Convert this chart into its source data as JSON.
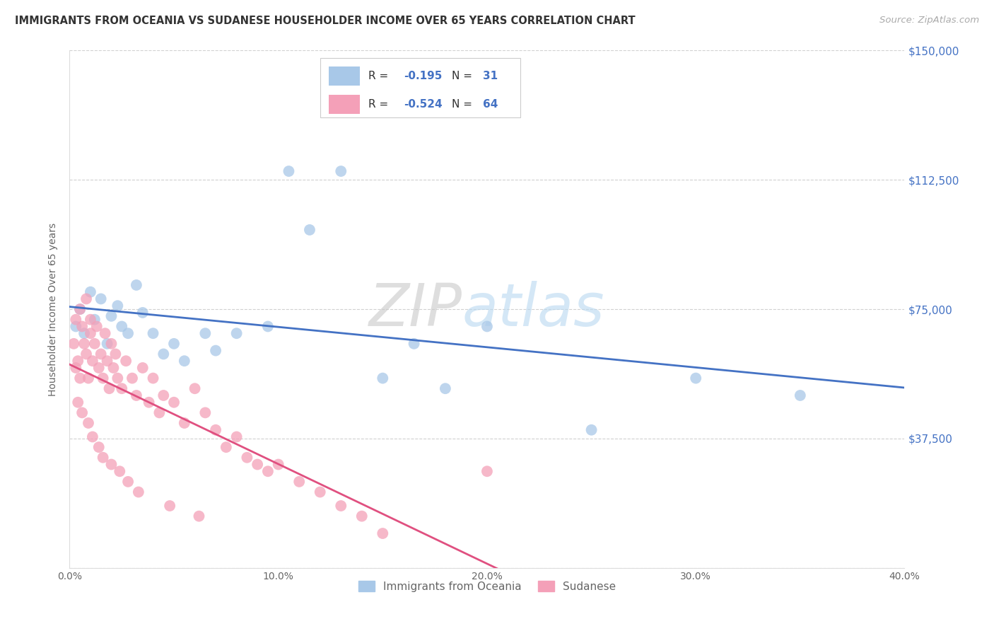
{
  "title": "IMMIGRANTS FROM OCEANIA VS SUDANESE HOUSEHOLDER INCOME OVER 65 YEARS CORRELATION CHART",
  "source": "Source: ZipAtlas.com",
  "xlabel_ticks": [
    "0.0%",
    "10.0%",
    "20.0%",
    "30.0%",
    "40.0%"
  ],
  "xlabel_vals": [
    0.0,
    10.0,
    20.0,
    30.0,
    40.0
  ],
  "ylabel_ticks": [
    "$37,500",
    "$75,000",
    "$112,500",
    "$150,000"
  ],
  "ylabel_vals": [
    37500,
    75000,
    112500,
    150000
  ],
  "ylabel_label": "Householder Income Over 65 years",
  "xlim": [
    0.0,
    40.0
  ],
  "ylim": [
    0,
    150000
  ],
  "blue_R": -0.195,
  "blue_N": 31,
  "pink_R": -0.524,
  "pink_N": 64,
  "blue_color": "#a8c8e8",
  "blue_line_color": "#4472c4",
  "pink_color": "#f4a0b8",
  "pink_line_color": "#e05080",
  "legend_label_blue": "Immigrants from Oceania",
  "legend_label_pink": "Sudanese",
  "watermark_zip": "ZIP",
  "watermark_atlas": "atlas",
  "blue_x": [
    0.3,
    0.5,
    0.7,
    1.0,
    1.2,
    1.5,
    1.8,
    2.0,
    2.3,
    2.5,
    2.8,
    3.2,
    3.5,
    4.0,
    4.5,
    5.0,
    5.5,
    6.5,
    7.0,
    8.0,
    9.5,
    10.5,
    11.5,
    13.0,
    15.0,
    16.5,
    18.0,
    20.0,
    25.0,
    30.0,
    35.0
  ],
  "blue_y": [
    70000,
    75000,
    68000,
    80000,
    72000,
    78000,
    65000,
    73000,
    76000,
    70000,
    68000,
    82000,
    74000,
    68000,
    62000,
    65000,
    60000,
    68000,
    63000,
    68000,
    70000,
    115000,
    98000,
    115000,
    55000,
    65000,
    52000,
    70000,
    40000,
    55000,
    50000
  ],
  "pink_x": [
    0.2,
    0.3,
    0.3,
    0.4,
    0.5,
    0.5,
    0.6,
    0.7,
    0.8,
    0.8,
    0.9,
    1.0,
    1.0,
    1.1,
    1.2,
    1.3,
    1.4,
    1.5,
    1.6,
    1.7,
    1.8,
    1.9,
    2.0,
    2.1,
    2.2,
    2.3,
    2.5,
    2.7,
    3.0,
    3.2,
    3.5,
    3.8,
    4.0,
    4.3,
    4.5,
    5.0,
    5.5,
    6.0,
    6.5,
    7.0,
    7.5,
    8.0,
    8.5,
    9.0,
    9.5,
    10.0,
    11.0,
    12.0,
    13.0,
    14.0,
    0.4,
    0.6,
    0.9,
    1.1,
    1.4,
    1.6,
    2.0,
    2.4,
    2.8,
    3.3,
    4.8,
    6.2,
    15.0,
    20.0
  ],
  "pink_y": [
    65000,
    58000,
    72000,
    60000,
    75000,
    55000,
    70000,
    65000,
    62000,
    78000,
    55000,
    68000,
    72000,
    60000,
    65000,
    70000,
    58000,
    62000,
    55000,
    68000,
    60000,
    52000,
    65000,
    58000,
    62000,
    55000,
    52000,
    60000,
    55000,
    50000,
    58000,
    48000,
    55000,
    45000,
    50000,
    48000,
    42000,
    52000,
    45000,
    40000,
    35000,
    38000,
    32000,
    30000,
    28000,
    30000,
    25000,
    22000,
    18000,
    15000,
    48000,
    45000,
    42000,
    38000,
    35000,
    32000,
    30000,
    28000,
    25000,
    22000,
    18000,
    15000,
    10000,
    28000
  ]
}
